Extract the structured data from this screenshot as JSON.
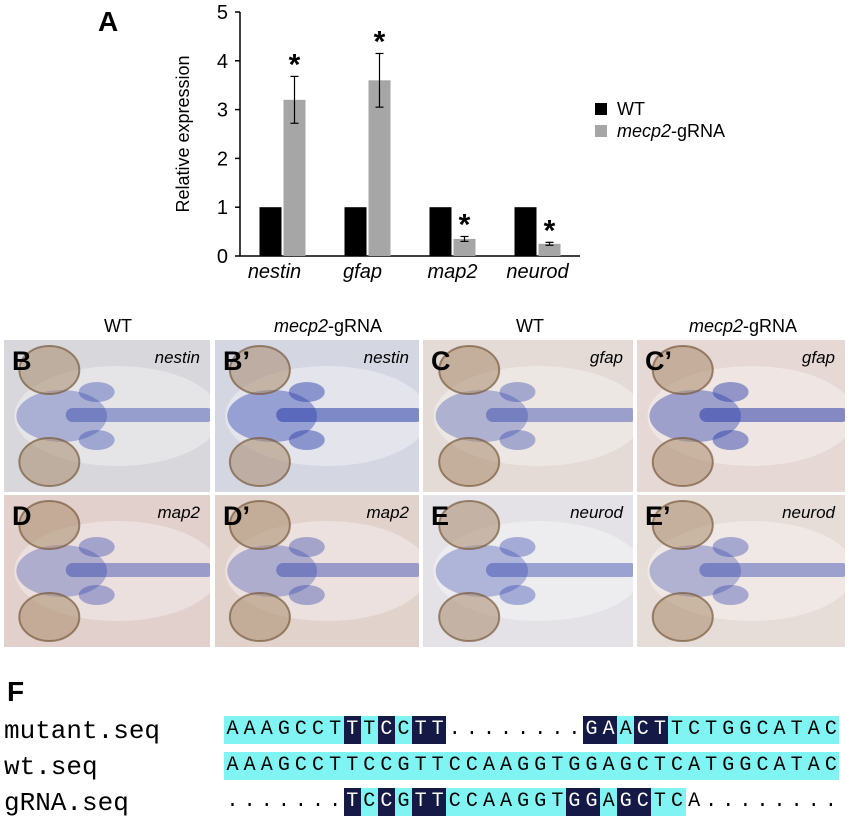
{
  "panel_a_letter": "A",
  "panel_f_letter": "F",
  "chart_data": {
    "type": "bar",
    "categories": [
      "nestin",
      "gfap",
      "map2",
      "neurod"
    ],
    "series": [
      {
        "name": "WT",
        "values": [
          1,
          1,
          1,
          1
        ],
        "errors": [
          0,
          0,
          0,
          0
        ],
        "color": "#000000"
      },
      {
        "name": "mecp2-gRNA",
        "values": [
          3.2,
          3.6,
          0.35,
          0.25
        ],
        "errors": [
          0.48,
          0.55,
          0.05,
          0.03
        ],
        "color": "#a6a6a6"
      }
    ],
    "significance": [
      "*",
      "*",
      "*",
      "*"
    ],
    "ylabel": "Relative expression",
    "xlabel": "",
    "ylim": [
      0,
      5
    ],
    "yticks": [
      "0",
      "1",
      "2",
      "3",
      "4",
      "5"
    ],
    "legend_position": "right",
    "legend": [
      {
        "label": "WT",
        "color": "#000000"
      },
      {
        "label_italic": "mecp2",
        "label_rest": "-gRNA",
        "color": "#a6a6a6"
      }
    ]
  },
  "column_headers": [
    {
      "plain": "WT"
    },
    {
      "italic": "mecp2",
      "rest": "-gRNA"
    },
    {
      "plain": "WT"
    },
    {
      "italic": "mecp2",
      "rest": "-gRNA"
    }
  ],
  "tiles": [
    {
      "letter": "B",
      "gene": "nestin"
    },
    {
      "letter": "B’",
      "gene": "nestin"
    },
    {
      "letter": "C",
      "gene": "gfap"
    },
    {
      "letter": "C’",
      "gene": "gfap"
    },
    {
      "letter": "D",
      "gene": "map2"
    },
    {
      "letter": "D’",
      "gene": "map2"
    },
    {
      "letter": "E",
      "gene": "neurod"
    },
    {
      "letter": "E’",
      "gene": "neurod"
    }
  ],
  "sequences": [
    {
      "label": "mutant.seq",
      "seq": "AAAGCCTTTCCTT........GAACTTCTGGCATAC",
      "marks": "CCCCCCCDCDCDDnnnnnnnnDDCDDCCCCCCCCCC"
    },
    {
      "label": "wt.seq",
      "seq": "AAAGCCTTCCGTTCCAAGGTGGAGCTCATGGCATAC",
      "marks": "CCCCCCCCCCCCCCCCCCCCCCCCCCCCCCCCCCCC"
    },
    {
      "label": "gRNA.seq",
      "seq": ".......TCCGTTCCAAGGTGGAGCTCA........",
      "marks": "nnnnnnnDCDCDDCCCCCCCDDCDDCCnnnnnnnnn"
    }
  ]
}
